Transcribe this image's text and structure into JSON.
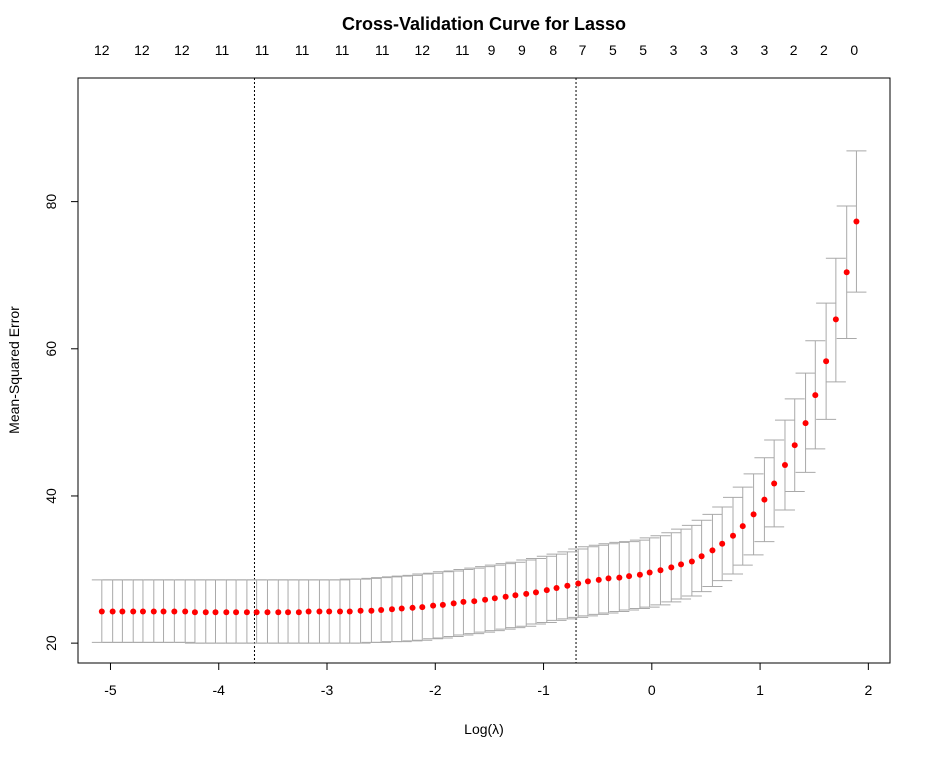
{
  "chart_data": {
    "type": "scatter",
    "title": "Cross-Validation Curve for Lasso",
    "xlabel": "Log(λ)",
    "ylabel": "Mean-Squared Error",
    "xlim": [
      -5.3,
      2.2
    ],
    "ylim": [
      17.3,
      96.8
    ],
    "x_ticks": [
      -5,
      -4,
      -3,
      -2,
      -1,
      0,
      1,
      2
    ],
    "y_ticks": [
      20,
      40,
      60,
      80
    ],
    "top_axis": {
      "x": [
        -5.08,
        -4.71,
        -4.34,
        -3.97,
        -3.6,
        -3.23,
        -2.86,
        -2.49,
        -2.12,
        -1.75,
        -1.48,
        -1.2,
        -0.91,
        -0.64,
        -0.36,
        -0.08,
        0.2,
        0.48,
        0.76,
        1.04,
        1.31,
        1.59,
        1.87
      ],
      "labels": [
        "12",
        "12",
        "12",
        "11",
        "11",
        "11",
        "11",
        "11",
        "12",
        "11",
        "9",
        "9",
        "8",
        "7",
        "5",
        "5",
        "3",
        "3",
        "3",
        "3",
        "2",
        "2",
        "0"
      ]
    },
    "vlines": [
      -3.67,
      -0.7
    ],
    "series": [
      {
        "x": [
          -5.08,
          -4.98,
          -4.89,
          -4.79,
          -4.7,
          -4.6,
          -4.51,
          -4.41,
          -4.31,
          -4.22,
          -4.12,
          -4.03,
          -3.93,
          -3.84,
          -3.74,
          -3.65,
          -3.55,
          -3.45,
          -3.36,
          -3.26,
          -3.17,
          -3.07,
          -2.98,
          -2.88,
          -2.79,
          -2.69,
          -2.59,
          -2.5,
          -2.4,
          -2.31,
          -2.21,
          -2.12,
          -2.02,
          -1.93,
          -1.83,
          -1.74,
          -1.64,
          -1.54,
          -1.45,
          -1.35,
          -1.26,
          -1.16,
          -1.07,
          -0.97,
          -0.88,
          -0.78,
          -0.68,
          -0.59,
          -0.49,
          -0.4,
          -0.3,
          -0.21,
          -0.11,
          -0.02,
          0.08,
          0.18,
          0.27,
          0.37,
          0.46,
          0.56,
          0.65,
          0.75,
          0.84,
          0.94,
          1.04,
          1.13,
          1.23,
          1.32,
          1.42,
          1.51,
          1.61,
          1.7,
          1.8,
          1.89
        ],
        "y": [
          24.3,
          24.3,
          24.3,
          24.3,
          24.3,
          24.3,
          24.3,
          24.3,
          24.3,
          24.2,
          24.2,
          24.2,
          24.2,
          24.2,
          24.2,
          24.2,
          24.2,
          24.2,
          24.2,
          24.2,
          24.3,
          24.3,
          24.3,
          24.3,
          24.3,
          24.4,
          24.4,
          24.5,
          24.6,
          24.7,
          24.8,
          24.9,
          25.1,
          25.2,
          25.4,
          25.6,
          25.7,
          25.9,
          26.1,
          26.3,
          26.5,
          26.7,
          26.9,
          27.2,
          27.5,
          27.8,
          28.1,
          28.4,
          28.6,
          28.8,
          28.9,
          29.1,
          29.3,
          29.6,
          29.9,
          30.3,
          30.7,
          31.1,
          31.8,
          32.6,
          33.5,
          34.6,
          35.9,
          37.5,
          39.5,
          41.7,
          44.2,
          46.9,
          49.9,
          53.7,
          58.3,
          64.0,
          70.4,
          77.3
        ]
      }
    ],
    "error_bars": {
      "upper": [
        28.6,
        28.6,
        28.6,
        28.6,
        28.6,
        28.6,
        28.6,
        28.6,
        28.6,
        28.6,
        28.6,
        28.6,
        28.6,
        28.6,
        28.6,
        28.6,
        28.6,
        28.6,
        28.6,
        28.6,
        28.6,
        28.6,
        28.6,
        28.6,
        28.7,
        28.7,
        28.8,
        28.9,
        29.0,
        29.1,
        29.2,
        29.4,
        29.5,
        29.7,
        29.8,
        30.0,
        30.2,
        30.4,
        30.6,
        30.8,
        31.0,
        31.3,
        31.5,
        31.8,
        32.1,
        32.4,
        32.8,
        33.1,
        33.3,
        33.5,
        33.7,
        33.8,
        34.0,
        34.3,
        34.6,
        35.0,
        35.5,
        36.0,
        36.7,
        37.5,
        38.5,
        39.8,
        41.2,
        43.0,
        45.2,
        47.6,
        50.3,
        53.2,
        56.7,
        61.1,
        66.2,
        72.3,
        79.4,
        86.9
      ],
      "lower": [
        20.1,
        20.1,
        20.1,
        20.1,
        20.1,
        20.1,
        20.1,
        20.1,
        20.1,
        20.0,
        20.0,
        20.0,
        20.0,
        20.0,
        20.0,
        20.0,
        20.0,
        20.0,
        20.0,
        20.0,
        20.0,
        20.0,
        20.0,
        20.0,
        20.0,
        20.0,
        20.1,
        20.1,
        20.2,
        20.2,
        20.3,
        20.4,
        20.6,
        20.7,
        20.9,
        21.1,
        21.3,
        21.5,
        21.7,
        21.9,
        22.1,
        22.3,
        22.6,
        22.8,
        23.1,
        23.3,
        23.5,
        23.7,
        23.9,
        24.1,
        24.3,
        24.5,
        24.7,
        24.9,
        25.2,
        25.6,
        26.0,
        26.4,
        27.0,
        27.7,
        28.5,
        29.4,
        30.6,
        32.0,
        33.8,
        35.8,
        38.1,
        40.6,
        43.2,
        46.4,
        50.4,
        55.5,
        61.4,
        67.7
      ]
    },
    "colors": {
      "points": "#ff0000",
      "error_bars": "#a9a9a9",
      "frame": "#000000",
      "vlines": "#000000"
    },
    "grid": false,
    "legend": "none"
  }
}
